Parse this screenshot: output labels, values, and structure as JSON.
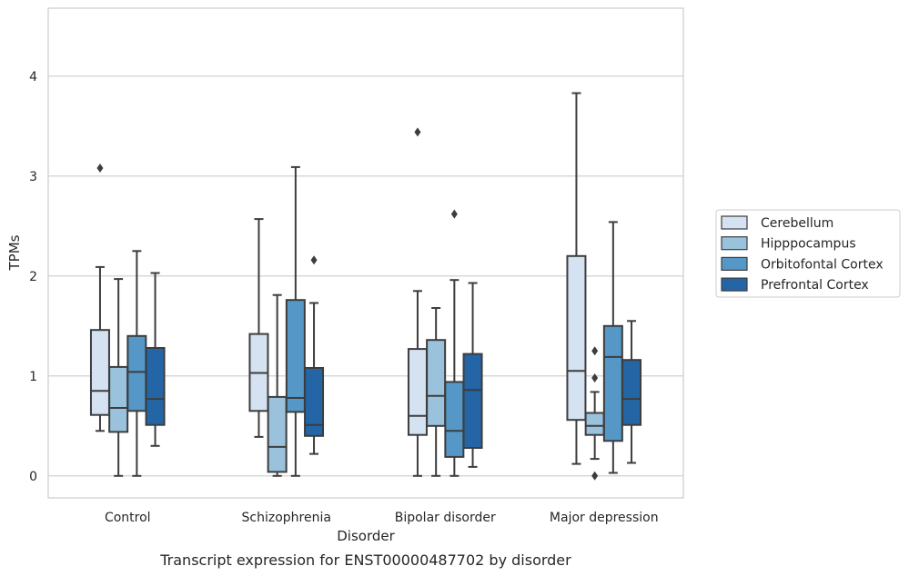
{
  "chart_data": {
    "type": "boxplot",
    "title": "",
    "caption": "Transcript expression for ENST00000487702 by disorder",
    "xlabel": "Disorder",
    "ylabel": "TPMs",
    "ylim": [
      -0.22,
      4.68
    ],
    "yticks": [
      0,
      1,
      2,
      3,
      4
    ],
    "y_tick_labels": [
      "0",
      "1",
      "2",
      "3",
      "4"
    ],
    "grid": "horizontal",
    "legend_position": "right",
    "categories": [
      "Control",
      "Schizophrenia",
      "Bipolar disorder",
      "Major depression"
    ],
    "series": [
      {
        "name": "Cerebellum",
        "color": "#d4e2f1",
        "boxes": [
          {
            "whislo": 0.45,
            "q1": 0.61,
            "med": 0.85,
            "q3": 1.46,
            "whishi": 2.09,
            "fliers": [
              3.08
            ]
          },
          {
            "whislo": 0.39,
            "q1": 0.65,
            "med": 1.03,
            "q3": 1.42,
            "whishi": 2.57,
            "fliers": []
          },
          {
            "whislo": 0.0,
            "q1": 0.41,
            "med": 0.6,
            "q3": 1.27,
            "whishi": 1.85,
            "fliers": [
              3.44
            ]
          },
          {
            "whislo": 0.12,
            "q1": 0.56,
            "med": 1.05,
            "q3": 2.2,
            "whishi": 3.83,
            "fliers": []
          }
        ]
      },
      {
        "name": "Hipppocampus",
        "color": "#9ac2dc",
        "boxes": [
          {
            "whislo": 0.0,
            "q1": 0.44,
            "med": 0.68,
            "q3": 1.09,
            "whishi": 1.97,
            "fliers": []
          },
          {
            "whislo": 0.0,
            "q1": 0.04,
            "med": 0.29,
            "q3": 0.79,
            "whishi": 1.81,
            "fliers": []
          },
          {
            "whislo": 0.0,
            "q1": 0.5,
            "med": 0.8,
            "q3": 1.36,
            "whishi": 1.68,
            "fliers": []
          },
          {
            "whislo": 0.17,
            "q1": 0.41,
            "med": 0.5,
            "q3": 0.63,
            "whishi": 0.84,
            "fliers": [
              1.25,
              0.98,
              0.0
            ]
          }
        ]
      },
      {
        "name": "Orbitofontal Cortex",
        "color": "#5597c6",
        "boxes": [
          {
            "whislo": 0.0,
            "q1": 0.65,
            "med": 1.04,
            "q3": 1.4,
            "whishi": 2.25,
            "fliers": []
          },
          {
            "whislo": 0.0,
            "q1": 0.64,
            "med": 0.78,
            "q3": 1.76,
            "whishi": 3.09,
            "fliers": []
          },
          {
            "whislo": 0.0,
            "q1": 0.19,
            "med": 0.45,
            "q3": 0.94,
            "whishi": 1.96,
            "fliers": [
              2.62
            ]
          },
          {
            "whislo": 0.03,
            "q1": 0.35,
            "med": 1.19,
            "q3": 1.5,
            "whishi": 2.54,
            "fliers": []
          }
        ]
      },
      {
        "name": "Prefrontal Cortex",
        "color": "#2465a5",
        "boxes": [
          {
            "whislo": 0.3,
            "q1": 0.51,
            "med": 0.77,
            "q3": 1.28,
            "whishi": 2.03,
            "fliers": []
          },
          {
            "whislo": 0.22,
            "q1": 0.4,
            "med": 0.51,
            "q3": 1.08,
            "whishi": 1.73,
            "fliers": [
              2.16
            ]
          },
          {
            "whislo": 0.09,
            "q1": 0.28,
            "med": 0.86,
            "q3": 1.22,
            "whishi": 1.93,
            "fliers": []
          },
          {
            "whislo": 0.13,
            "q1": 0.51,
            "med": 0.77,
            "q3": 1.16,
            "whishi": 1.55,
            "fliers": []
          }
        ]
      }
    ]
  }
}
